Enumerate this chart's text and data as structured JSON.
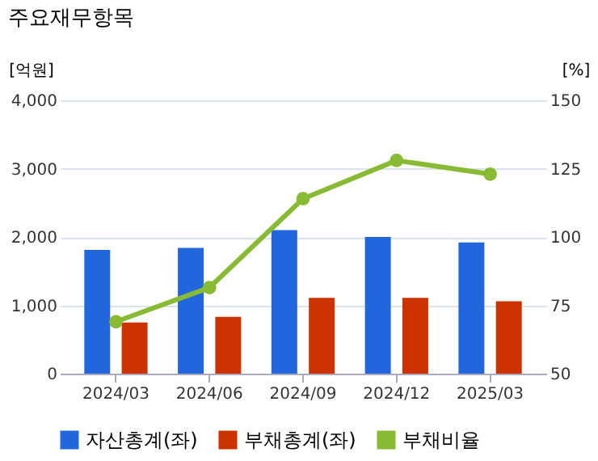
{
  "chart_data": {
    "type": "bar",
    "title": "주요재무항목",
    "categories": [
      "2024/03",
      "2024/06",
      "2024/09",
      "2024/12",
      "2025/03"
    ],
    "series": [
      {
        "name": "자산총계(좌)",
        "color": "#2266dd",
        "values": [
          1810,
          1840,
          2100,
          2000,
          1920
        ]
      },
      {
        "name": "부채총계(좌)",
        "color": "#cc3300",
        "values": [
          750,
          830,
          1110,
          1110,
          1060
        ]
      },
      {
        "name": "부채비율",
        "color": "#88bb33",
        "type": "line",
        "axis": "y2",
        "marker": "circle",
        "values": [
          69,
          81.5,
          114,
          128,
          123
        ]
      }
    ],
    "ylabel": "[억원]",
    "y2label": "[%]",
    "ylim": [
      0,
      4000
    ],
    "yticks": [
      0,
      {
        "value": 1000,
        "label": "1,000"
      },
      {
        "value": 2000,
        "label": "2,000"
      },
      {
        "value": 3000,
        "label": "3,000"
      },
      {
        "value": 4000,
        "label": "4,000"
      }
    ],
    "y2lim": [
      50,
      150
    ],
    "y2ticks": [
      50,
      75,
      100,
      125,
      150
    ],
    "grid": "y",
    "legend": "bottom"
  }
}
